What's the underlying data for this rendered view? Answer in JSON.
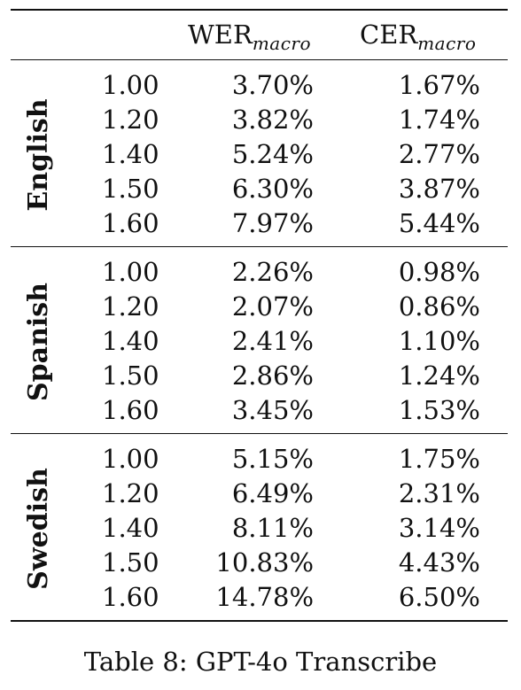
{
  "table": {
    "columns": {
      "wer": {
        "base": "WER",
        "sub": "macro"
      },
      "cer": {
        "base": "CER",
        "sub": "macro"
      }
    },
    "groups": [
      {
        "language": "English",
        "rows": [
          {
            "scale": "1.00",
            "wer": "3.70%",
            "cer": "1.67%"
          },
          {
            "scale": "1.20",
            "wer": "3.82%",
            "cer": "1.74%"
          },
          {
            "scale": "1.40",
            "wer": "5.24%",
            "cer": "2.77%"
          },
          {
            "scale": "1.50",
            "wer": "6.30%",
            "cer": "3.87%"
          },
          {
            "scale": "1.60",
            "wer": "7.97%",
            "cer": "5.44%"
          }
        ]
      },
      {
        "language": "Spanish",
        "rows": [
          {
            "scale": "1.00",
            "wer": "2.26%",
            "cer": "0.98%"
          },
          {
            "scale": "1.20",
            "wer": "2.07%",
            "cer": "0.86%"
          },
          {
            "scale": "1.40",
            "wer": "2.41%",
            "cer": "1.10%"
          },
          {
            "scale": "1.50",
            "wer": "2.86%",
            "cer": "1.24%"
          },
          {
            "scale": "1.60",
            "wer": "3.45%",
            "cer": "1.53%"
          }
        ]
      },
      {
        "language": "Swedish",
        "rows": [
          {
            "scale": "1.00",
            "wer": "5.15%",
            "cer": "1.75%"
          },
          {
            "scale": "1.20",
            "wer": "6.49%",
            "cer": "2.31%"
          },
          {
            "scale": "1.40",
            "wer": "8.11%",
            "cer": "3.14%"
          },
          {
            "scale": "1.50",
            "wer": "10.83%",
            "cer": "4.43%"
          },
          {
            "scale": "1.60",
            "wer": "14.78%",
            "cer": "6.50%"
          }
        ]
      }
    ]
  },
  "caption": "Table 8: GPT-4o Transcribe"
}
